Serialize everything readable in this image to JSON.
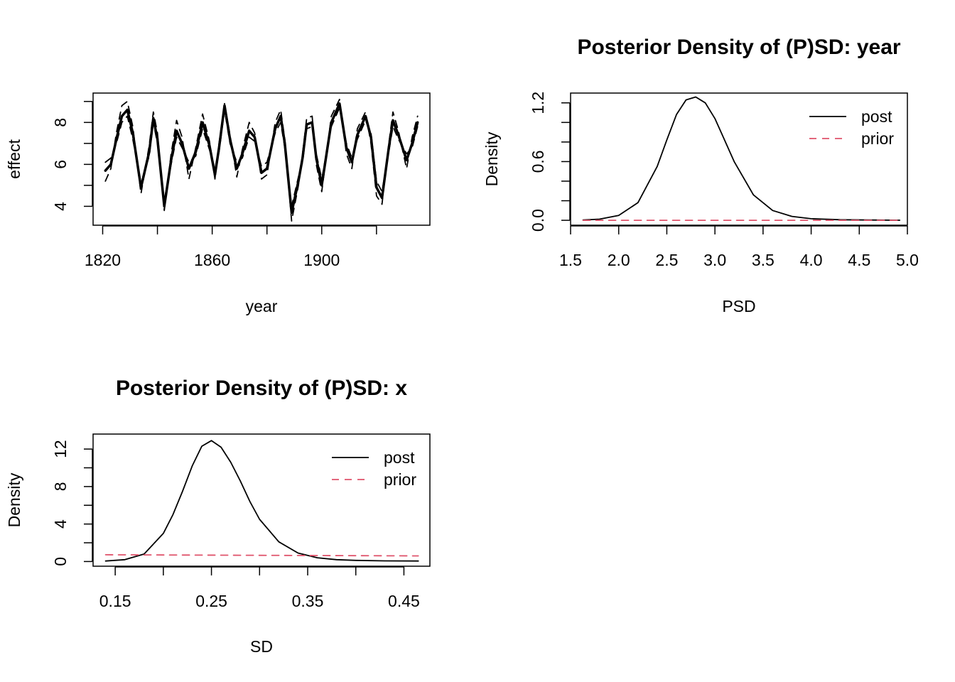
{
  "chart_data": [
    {
      "type": "line",
      "title": "",
      "xlabel": "year",
      "ylabel": "effect",
      "xlim": [
        1816.5,
        1939.5
      ],
      "ylim": [
        3.1,
        9.4
      ],
      "xticks": [
        1820,
        1840,
        1860,
        1880,
        1900,
        1920
      ],
      "xtick_labels": [
        "1820",
        "",
        "1860",
        "",
        "1900",
        ""
      ],
      "yticks": [
        4,
        5,
        6,
        7,
        8,
        9
      ],
      "ytick_labels": [
        "4",
        "",
        "6",
        "",
        "8",
        ""
      ],
      "grid": false,
      "series": [
        {
          "style": "solid-thick",
          "color": "#000000",
          "x": [
            1821,
            1823,
            1825,
            1827,
            1829,
            1831,
            1834,
            1837,
            1838.5,
            1840,
            1842.5,
            1845,
            1847,
            1849,
            1851.5,
            1854,
            1856.5,
            1859,
            1861,
            1862.5,
            1864.5,
            1866.5,
            1869,
            1871,
            1873.5,
            1875.5,
            1878,
            1880,
            1883,
            1885,
            1886.5,
            1889,
            1891.5,
            1893,
            1894.5,
            1896.5,
            1898,
            1900,
            1903.5,
            1906.5,
            1909,
            1911,
            1913,
            1916,
            1918,
            1920,
            1922,
            1924.5,
            1926,
            1928,
            1931,
            1933,
            1935
          ],
          "y": [
            5.7,
            6.0,
            7.2,
            8.3,
            8.6,
            7.5,
            4.9,
            6.6,
            8.2,
            7.2,
            4.0,
            6.2,
            7.6,
            7.0,
            5.8,
            6.6,
            8.0,
            6.9,
            5.5,
            6.8,
            8.8,
            7.2,
            5.8,
            6.5,
            7.6,
            7.3,
            5.6,
            5.8,
            7.7,
            8.3,
            7.0,
            3.7,
            5.2,
            6.3,
            7.9,
            8.0,
            6.3,
            5.0,
            8.0,
            8.9,
            6.8,
            6.1,
            7.4,
            8.3,
            7.3,
            4.9,
            4.4,
            6.8,
            8.1,
            7.4,
            6.2,
            7.0,
            8.0
          ]
        },
        {
          "style": "dashed",
          "color": "#000000",
          "x": [
            1821,
            1823,
            1825,
            1827,
            1829,
            1831,
            1834,
            1837,
            1838.5,
            1840,
            1842.5,
            1845,
            1847,
            1849,
            1851.5,
            1854,
            1856.5,
            1859,
            1861,
            1862.5,
            1864.5,
            1866.5,
            1869,
            1871,
            1873.5,
            1875.5,
            1878,
            1880,
            1883,
            1885,
            1886.5,
            1889,
            1891.5,
            1893,
            1894.5,
            1896.5,
            1898,
            1900,
            1903.5,
            1906.5,
            1909,
            1911,
            1913,
            1916,
            1918,
            1920,
            1922,
            1924.5,
            1926,
            1928,
            1931,
            1933,
            1935
          ],
          "y": [
            5.2,
            5.8,
            7.5,
            8.8,
            9.0,
            7.8,
            4.6,
            6.9,
            8.5,
            7.5,
            3.8,
            6.5,
            8.1,
            7.3,
            5.3,
            6.8,
            8.4,
            7.1,
            5.3,
            7.0,
            8.9,
            7.4,
            5.4,
            6.7,
            8.0,
            7.5,
            5.3,
            5.5,
            8.0,
            8.6,
            7.2,
            3.3,
            5.0,
            6.5,
            8.2,
            8.3,
            6.0,
            4.7,
            8.3,
            9.1,
            6.5,
            5.8,
            7.7,
            8.5,
            7.0,
            4.5,
            4.1,
            7.0,
            8.5,
            7.6,
            5.8,
            7.3,
            8.3
          ]
        },
        {
          "style": "dashed",
          "color": "#000000",
          "x": [
            1821,
            1823,
            1825,
            1827,
            1829,
            1831,
            1834,
            1837,
            1838.5,
            1840,
            1842.5,
            1845,
            1847,
            1849,
            1851.5,
            1854,
            1856.5,
            1859,
            1861,
            1862.5,
            1864.5,
            1866.5,
            1869,
            1871,
            1873.5,
            1875.5,
            1878,
            1880,
            1883,
            1885,
            1886.5,
            1889,
            1891.5,
            1893,
            1894.5,
            1896.5,
            1898,
            1900,
            1903.5,
            1906.5,
            1909,
            1911,
            1913,
            1916,
            1918,
            1920,
            1922,
            1924.5,
            1926,
            1928,
            1931,
            1933,
            1935
          ],
          "y": [
            6.1,
            6.3,
            7.0,
            8.0,
            8.3,
            7.2,
            5.1,
            6.4,
            8.0,
            7.0,
            4.3,
            6.0,
            7.3,
            6.8,
            6.1,
            6.4,
            7.7,
            6.7,
            5.8,
            6.6,
            8.6,
            7.0,
            6.1,
            6.3,
            7.3,
            7.1,
            5.9,
            6.1,
            7.5,
            8.0,
            6.8,
            4.0,
            5.4,
            6.1,
            7.7,
            7.8,
            6.5,
            5.3,
            7.8,
            8.7,
            7.0,
            6.3,
            7.2,
            8.1,
            7.5,
            5.2,
            4.7,
            6.6,
            7.8,
            7.2,
            6.5,
            6.8,
            7.8
          ]
        }
      ]
    },
    {
      "type": "line",
      "title": "Posterior Density of (P)SD: year",
      "xlabel": "PSD",
      "ylabel": "Density",
      "xlim": [
        1.5,
        5.0
      ],
      "ylim": [
        -0.05,
        1.3
      ],
      "xticks": [
        1.5,
        2.0,
        2.5,
        3.0,
        3.5,
        4.0,
        4.5,
        5.0
      ],
      "xtick_labels": [
        "1.5",
        "2.0",
        "2.5",
        "3.0",
        "3.5",
        "4.0",
        "4.5",
        "5.0"
      ],
      "yticks": [
        0.0,
        0.2,
        0.4,
        0.6,
        0.8,
        1.0,
        1.2
      ],
      "ytick_labels": [
        "0.0",
        "",
        "",
        "0.6",
        "",
        "",
        "1.2"
      ],
      "grid": false,
      "legend": {
        "position": "top-right",
        "entries": [
          "post",
          "prior"
        ]
      },
      "series": [
        {
          "name": "post",
          "style": "solid",
          "color": "#000000",
          "x": [
            1.63,
            1.8,
            2.0,
            2.2,
            2.4,
            2.5,
            2.6,
            2.7,
            2.8,
            2.9,
            3.0,
            3.1,
            3.2,
            3.4,
            3.6,
            3.8,
            4.0,
            4.3,
            4.6,
            4.92
          ],
          "y": [
            0.003,
            0.012,
            0.05,
            0.18,
            0.55,
            0.82,
            1.08,
            1.23,
            1.26,
            1.2,
            1.04,
            0.82,
            0.6,
            0.26,
            0.1,
            0.04,
            0.016,
            0.006,
            0.003,
            0.001
          ]
        },
        {
          "name": "prior",
          "style": "dashed",
          "color": "#DF536B",
          "x": [
            1.63,
            4.92
          ],
          "y": [
            0.0,
            0.0
          ]
        }
      ]
    },
    {
      "type": "line",
      "title": "Posterior Density of (P)SD: x",
      "xlabel": "SD",
      "ylabel": "Density",
      "xlim": [
        0.127,
        0.477
      ],
      "ylim": [
        -0.5,
        13.6
      ],
      "xticks": [
        0.15,
        0.2,
        0.25,
        0.3,
        0.35,
        0.4,
        0.45
      ],
      "xtick_labels": [
        "0.15",
        "",
        "0.25",
        "",
        "0.35",
        "",
        "0.45"
      ],
      "yticks": [
        0,
        2,
        4,
        6,
        8,
        10,
        12
      ],
      "ytick_labels": [
        "0",
        "",
        "4",
        "",
        "8",
        "",
        "12"
      ],
      "grid": false,
      "legend": {
        "position": "top-right",
        "entries": [
          "post",
          "prior"
        ]
      },
      "series": [
        {
          "name": "post",
          "style": "solid",
          "color": "#000000",
          "x": [
            0.14,
            0.16,
            0.18,
            0.2,
            0.21,
            0.22,
            0.23,
            0.24,
            0.25,
            0.26,
            0.27,
            0.28,
            0.29,
            0.3,
            0.32,
            0.34,
            0.36,
            0.38,
            0.4,
            0.43,
            0.465
          ],
          "y": [
            0.05,
            0.2,
            0.8,
            3.0,
            5.0,
            7.5,
            10.2,
            12.3,
            12.9,
            12.2,
            10.6,
            8.6,
            6.4,
            4.5,
            2.1,
            0.9,
            0.4,
            0.2,
            0.12,
            0.07,
            0.05
          ]
        },
        {
          "name": "prior",
          "style": "dashed",
          "color": "#DF536B",
          "x": [
            0.14,
            0.465
          ],
          "y": [
            0.72,
            0.6
          ]
        }
      ]
    }
  ]
}
